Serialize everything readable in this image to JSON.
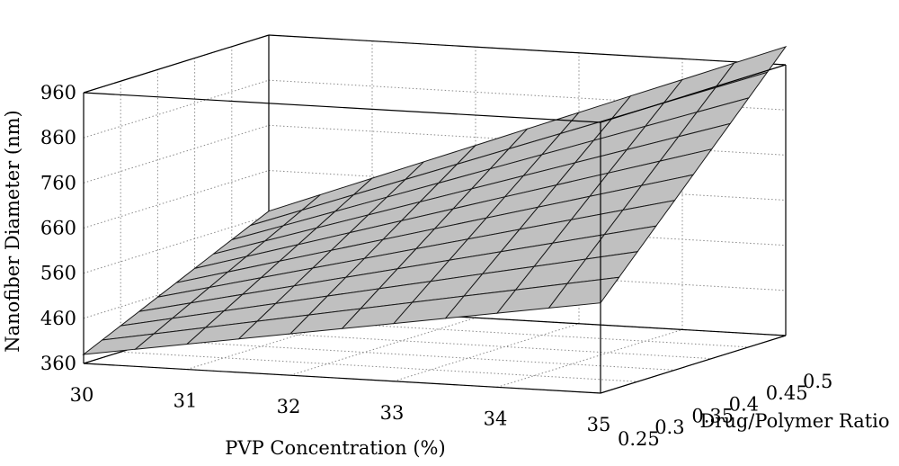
{
  "chart_data": {
    "type": "surface",
    "xlabel": "PVP Concentration (%)",
    "ylabel": "Drug/Polymer Ratio",
    "zlabel": "Nanofiber Diameter (nm)",
    "x_ticks": [
      "30",
      "31",
      "32",
      "33",
      "34",
      "35"
    ],
    "y_ticks": [
      "0.25",
      "0.3",
      "0.35",
      "0.4",
      "0.45",
      "0.5"
    ],
    "z_ticks": [
      "360",
      "460",
      "560",
      "660",
      "760",
      "860",
      "960"
    ],
    "xlim": [
      30,
      35
    ],
    "ylim": [
      0.25,
      0.5
    ],
    "zlim": [
      360,
      960
    ],
    "surface_corners": [
      {
        "x": 30,
        "y": 0.25,
        "z": 380
      },
      {
        "x": 35,
        "y": 0.25,
        "z": 560
      },
      {
        "x": 30,
        "y": 0.5,
        "z": 570
      },
      {
        "x": 35,
        "y": 0.5,
        "z": 1000
      }
    ],
    "grid": true,
    "surface_color": "#c0c0c0",
    "mesh_divisions": 10
  }
}
